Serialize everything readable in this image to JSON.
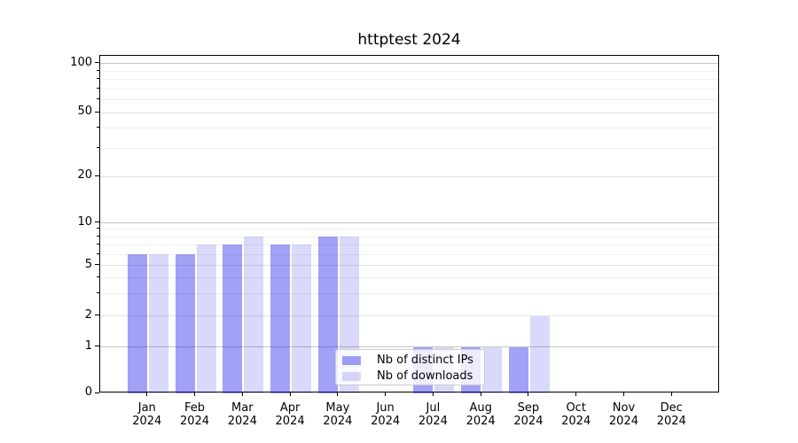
{
  "chart_data": {
    "type": "bar",
    "title": "httptest 2024",
    "x": {
      "months": [
        "Jan",
        "Feb",
        "Mar",
        "Apr",
        "May",
        "Jun",
        "Jul",
        "Aug",
        "Sep",
        "Oct",
        "Nov",
        "Dec"
      ],
      "year": "2024"
    },
    "series": [
      {
        "name": "Nb of distinct IPs",
        "color": "rgba(0,0,230,0.37)",
        "values": [
          6,
          6,
          7,
          7,
          8,
          0,
          1,
          1,
          1,
          0,
          0,
          0
        ]
      },
      {
        "name": "Nb of downloads",
        "color": "rgba(0,0,230,0.15)",
        "values": [
          6,
          7,
          8,
          7,
          8,
          0,
          1,
          1,
          2,
          0,
          0,
          0
        ]
      }
    ],
    "y_axis": {
      "scale": "asinh (log-like above 1, linear 0-1)",
      "ylim": [
        0,
        100
      ],
      "major_ticks": [
        0,
        1,
        2,
        5,
        10,
        20,
        50,
        100
      ],
      "power_ticks": [
        1,
        10,
        100
      ],
      "minor_gridlines": [
        3,
        4,
        6,
        7,
        8,
        9,
        30,
        40,
        60,
        70,
        80,
        90
      ],
      "anchor_fractions": {
        "0": 1.0,
        "1": 0.8635,
        "2": 0.7709,
        "5": 0.622,
        "10": 0.4948,
        "20": 0.3577,
        "50": 0.168,
        "100": 0.0236
      }
    },
    "legend": {
      "position": "lower center, inside plot",
      "items": [
        "Nb of distinct IPs",
        "Nb of downloads"
      ]
    },
    "grid": "on"
  },
  "colors": {
    "grid_power": "#c6c6c6",
    "grid_labeled": "#e2e2e2",
    "grid_minor": "#efefef",
    "axis": "#000000",
    "text": "#000000",
    "legend_border": "#cccccc",
    "legend_background": "rgba(255,255,255,0.8)"
  }
}
